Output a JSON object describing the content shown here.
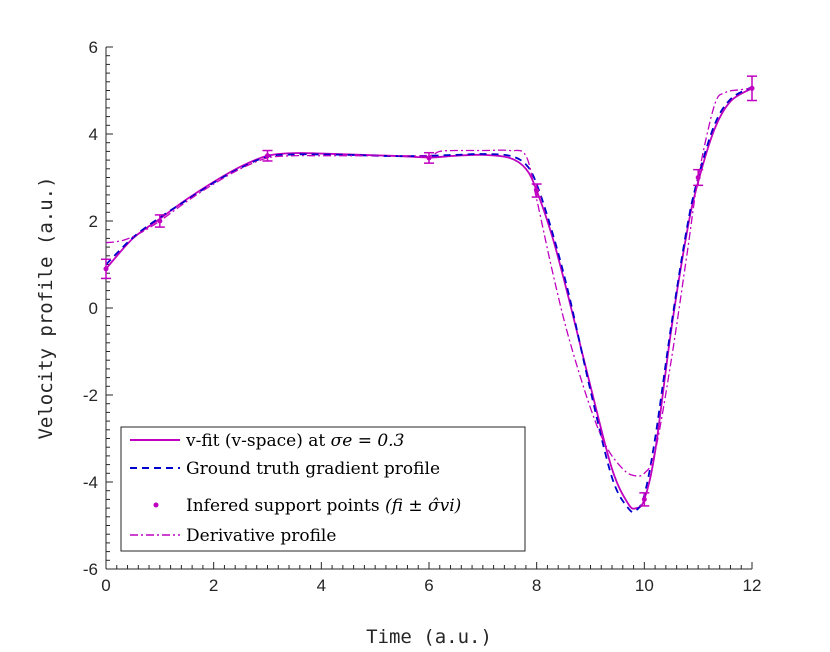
{
  "chart_data": {
    "type": "line",
    "xlabel": "Time (a.u.)",
    "ylabel": "Velocity profile (a.u.)",
    "xlim": [
      0,
      12
    ],
    "ylim": [
      -6,
      6
    ],
    "xticks": [
      0,
      2,
      4,
      6,
      8,
      10,
      12
    ],
    "xtick_labels": [
      "0",
      "2",
      "4",
      "6",
      "8",
      "10",
      "12"
    ],
    "yticks": [
      -6,
      -4,
      -2,
      0,
      2,
      4,
      6
    ],
    "ytick_labels": [
      "-6",
      "-4",
      "-2",
      "0",
      "2",
      "4",
      "6"
    ],
    "grid": false,
    "legend_position": "bottom-left",
    "series": [
      {
        "name": "v-fit (v-space) at σe = 0.3",
        "style": "solid",
        "color": "#c000c0",
        "x": [
          0,
          0.5,
          1,
          1.5,
          2,
          2.5,
          3,
          3.5,
          4,
          4.5,
          5,
          5.5,
          6,
          6.5,
          7,
          7.5,
          7.8,
          8,
          8.3,
          8.6,
          9,
          9.4,
          9.7,
          9.85,
          10,
          10.2,
          10.5,
          10.8,
          11,
          11.3,
          11.6,
          12
        ],
        "y": [
          0.9,
          1.6,
          2.05,
          2.5,
          2.9,
          3.25,
          3.5,
          3.56,
          3.55,
          3.53,
          3.51,
          3.49,
          3.46,
          3.5,
          3.52,
          3.45,
          3.2,
          2.7,
          1.6,
          0.2,
          -1.8,
          -3.7,
          -4.5,
          -4.6,
          -4.4,
          -3.3,
          -0.5,
          1.8,
          2.9,
          4.1,
          4.75,
          5.05
        ]
      },
      {
        "name": "Ground truth gradient profile",
        "style": "dashed",
        "color": "#0000cc",
        "x": [
          0,
          0.5,
          1,
          1.5,
          2,
          2.5,
          3,
          3.5,
          4,
          4.5,
          5,
          5.5,
          6,
          6.5,
          7,
          7.5,
          7.8,
          8,
          8.3,
          8.6,
          9,
          9.4,
          9.7,
          9.85,
          10,
          10.2,
          10.5,
          10.8,
          11,
          11.3,
          11.6,
          12
        ],
        "y": [
          1.0,
          1.62,
          2.08,
          2.48,
          2.88,
          3.22,
          3.48,
          3.53,
          3.53,
          3.52,
          3.5,
          3.49,
          3.5,
          3.52,
          3.54,
          3.5,
          3.3,
          2.85,
          1.7,
          0.3,
          -1.9,
          -3.9,
          -4.6,
          -4.65,
          -4.3,
          -3.0,
          -0.4,
          1.9,
          3.0,
          4.2,
          4.8,
          5.08
        ]
      },
      {
        "name": "Derivative profile",
        "style": "dashdot",
        "color": "#c000c0",
        "x": [
          0,
          0.3,
          0.6,
          1,
          1.5,
          2,
          2.5,
          3,
          3.5,
          4,
          4.5,
          5,
          5.5,
          6,
          6.2,
          6.5,
          7,
          7.5,
          7.8,
          8,
          8.3,
          8.6,
          9,
          9.3,
          9.6,
          9.8,
          10,
          10.2,
          10.5,
          10.8,
          11,
          11.3,
          11.5,
          11.8,
          12
        ],
        "y": [
          1.5,
          1.55,
          1.7,
          2.0,
          2.45,
          2.85,
          3.2,
          3.45,
          3.5,
          3.5,
          3.5,
          3.5,
          3.5,
          3.5,
          3.6,
          3.62,
          3.62,
          3.62,
          3.5,
          2.5,
          0.8,
          -0.7,
          -2.3,
          -3.2,
          -3.7,
          -3.85,
          -3.8,
          -3.3,
          -1.2,
          1.3,
          3.0,
          4.65,
          4.95,
          5.02,
          5.05
        ]
      }
    ],
    "support_points": {
      "name": "Infered support points (fi ± σ̂vi)",
      "color": "#c000c0",
      "x": [
        0,
        1,
        3,
        6,
        8,
        10,
        11,
        12
      ],
      "y": [
        0.9,
        2.0,
        3.5,
        3.45,
        2.7,
        -4.4,
        3.0,
        5.05
      ],
      "err": [
        0.22,
        0.14,
        0.12,
        0.12,
        0.15,
        0.15,
        0.18,
        0.28
      ]
    },
    "legend": [
      {
        "text": "v-fit (v-space) at ",
        "math": "σe = 0.3"
      },
      {
        "text": "Ground truth gradient profile"
      },
      {
        "text": "Infered support points ",
        "math": "(fi ± σ̂vi)"
      },
      {
        "text": "Derivative profile"
      }
    ]
  }
}
